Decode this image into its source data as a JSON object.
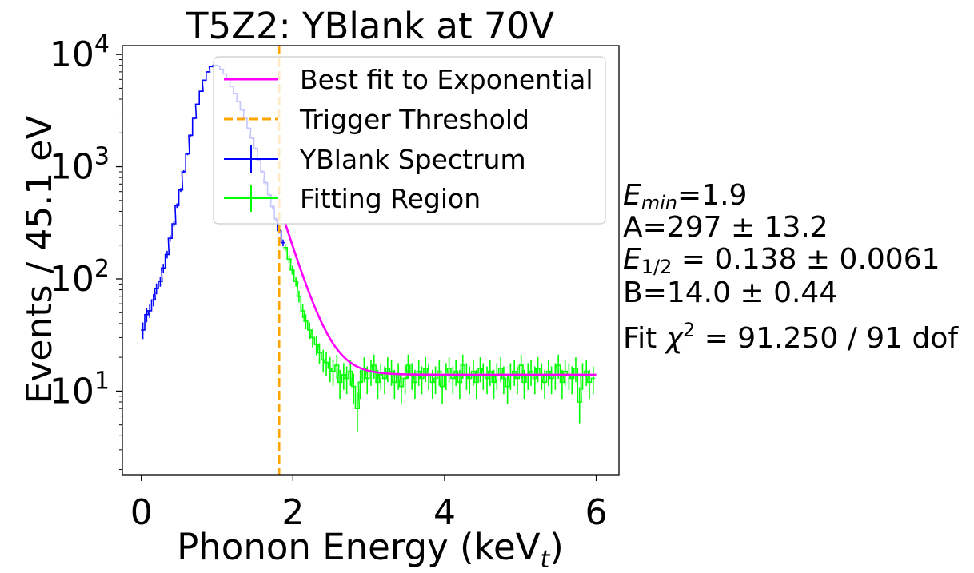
{
  "chart_data": {
    "type": "line",
    "title": "T5Z2: YBlank at 70V",
    "xlabel_main": "Phonon Energy (keV",
    "xlabel_sub": "t",
    "xlabel_close": ")",
    "ylabel": "Events / 45.1 eV",
    "xlim": [
      -0.25,
      6.3
    ],
    "ylim": [
      1.8,
      12000
    ],
    "yscale": "log",
    "xticks": [
      0,
      2,
      4,
      6
    ],
    "yticks": [
      10,
      100,
      1000,
      10000
    ],
    "xtick_labels": [
      "0",
      "2",
      "4",
      "6"
    ],
    "ytick_base": "10",
    "ytick_exponents": [
      "1",
      "2",
      "3",
      "4"
    ],
    "grid": false,
    "legend_position": "top-right",
    "threshold_x": 1.82,
    "fit_range": [
      1.9,
      6.0
    ],
    "fit_params": {
      "A": 297,
      "E_half": 0.138,
      "B": 14.0,
      "E_min": 1.9
    },
    "series": [
      {
        "name": "Best fit to Exponential",
        "color": "#ff00ff",
        "style": "solid"
      },
      {
        "name": "Trigger Threshold",
        "color": "#ffa500",
        "style": "dashed"
      },
      {
        "name": "YBlank Spectrum",
        "color": "#0000ff",
        "style": "errorbar",
        "x": [
          0.02,
          0.07,
          0.11,
          0.16,
          0.2,
          0.25,
          0.29,
          0.34,
          0.38,
          0.43,
          0.47,
          0.52,
          0.56,
          0.61,
          0.65,
          0.7,
          0.74,
          0.79,
          0.83,
          0.88,
          0.92,
          0.97,
          1.01,
          1.06,
          1.1,
          1.15,
          1.19,
          1.24,
          1.28,
          1.33,
          1.37,
          1.42,
          1.46,
          1.51,
          1.55,
          1.6,
          1.64,
          1.69,
          1.73,
          1.78,
          1.82,
          1.87
        ],
        "y": [
          35,
          48,
          52,
          65,
          82,
          95,
          125,
          165,
          230,
          310,
          450,
          620,
          900,
          1300,
          1900,
          2700,
          3600,
          4700,
          5900,
          7000,
          7800,
          8000,
          7900,
          7400,
          6700,
          6000,
          5200,
          4500,
          3800,
          3200,
          2700,
          2200,
          1800,
          1450,
          1150,
          900,
          720,
          560,
          440,
          340,
          270,
          210
        ]
      },
      {
        "name": "Fitting Region",
        "color": "#00ff00",
        "style": "errorbar",
        "x": [
          1.9,
          1.95,
          1.99,
          2.04,
          2.08,
          2.13,
          2.17,
          2.22,
          2.26,
          2.31,
          2.35,
          2.4,
          2.44,
          2.49,
          2.53,
          2.58,
          2.62,
          2.67,
          2.71,
          2.76,
          2.8,
          2.85,
          2.89,
          2.94,
          2.98,
          3.03,
          3.07,
          3.12,
          3.16,
          3.21,
          3.25,
          3.3,
          3.34,
          3.39,
          3.43,
          3.48,
          3.52,
          3.57,
          3.61,
          3.66,
          3.7,
          3.75,
          3.79,
          3.84,
          3.88,
          3.93,
          3.97,
          4.02,
          4.06,
          4.11,
          4.15,
          4.2,
          4.24,
          4.29,
          4.33,
          4.38,
          4.42,
          4.47,
          4.51,
          4.56,
          4.6,
          4.65,
          4.69,
          4.74,
          4.78,
          4.83,
          4.87,
          4.92,
          4.96,
          5.01,
          5.05,
          5.1,
          5.14,
          5.19,
          5.23,
          5.28,
          5.32,
          5.37,
          5.41,
          5.46,
          5.5,
          5.55,
          5.59,
          5.64,
          5.68,
          5.73,
          5.78,
          5.82,
          5.87,
          5.91,
          5.96
        ],
        "y": [
          190,
          150,
          120,
          95,
          70,
          52,
          42,
          35,
          30,
          26,
          22,
          19,
          18,
          16,
          15,
          17,
          12,
          14,
          13,
          15,
          11,
          7,
          12,
          16,
          13,
          15,
          17,
          12,
          14,
          13,
          16,
          15,
          12,
          14,
          11,
          13,
          17,
          14,
          12,
          15,
          13,
          16,
          14,
          12,
          13,
          15,
          11,
          14,
          16,
          13,
          15,
          12,
          17,
          14,
          13,
          15,
          12,
          16,
          14,
          13,
          15,
          12,
          14,
          16,
          13,
          11,
          14,
          15,
          13,
          17,
          12,
          14,
          15,
          13,
          16,
          14,
          12,
          15,
          13,
          14,
          17,
          12,
          15,
          14,
          13,
          16,
          8,
          14,
          15,
          12,
          13
        ]
      }
    ],
    "annotations": {
      "emin_sub": "min",
      "emin_rest": "=1.9",
      "amp": "A=297 ± 13.2",
      "half_sub": "1/2",
      "half_rest": " = 0.138 ± 0.0061",
      "bg": "B=14.0 ± 0.44",
      "chi_pre": "Fit ",
      "chi_sym": "χ",
      "chi_exp": "2",
      "chi_rest": " = 91.250 / 91 dof"
    }
  }
}
